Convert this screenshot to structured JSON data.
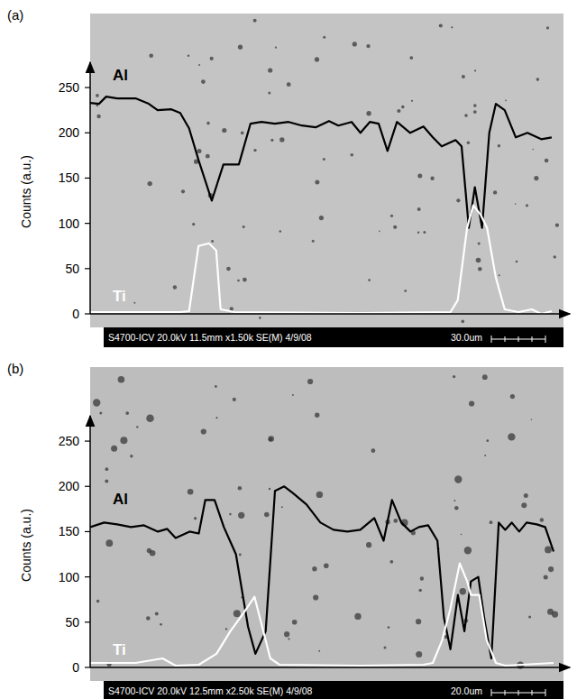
{
  "chart_data": [
    {
      "type": "line",
      "title": "(a)",
      "ylabel": "Counts (a.u.)",
      "annotations": [
        "S4700-ICV 20.0kV 11.5mm x1.50k SE(M) 4/9/08",
        "30.0um"
      ],
      "xlim": [
        0,
        84
      ],
      "ylim": [
        0,
        270
      ],
      "yticks": [
        0,
        50,
        100,
        150,
        200,
        250
      ],
      "tick_labels": "y",
      "grid": false,
      "series": [
        {
          "name": "Al",
          "color": "#000000",
          "x": [
            0,
            1.6,
            2.9,
            4.9,
            8.2,
            10.6,
            12.2,
            14.7,
            16.3,
            17.9,
            19.6,
            22.0,
            24.1,
            26.9,
            29.0,
            31.0,
            33.4,
            35.9,
            38.3,
            40.8,
            43.2,
            44.9,
            47.3,
            48.9,
            50.6,
            52.2,
            53.8,
            55.5,
            57.9,
            60.3,
            62.0,
            63.6,
            66.1,
            67.2,
            68.5,
            69.6,
            70.9,
            72.2,
            73.4,
            75.0,
            77.0,
            79.1,
            81.6,
            83.5
          ],
          "values": [
            233,
            232,
            240,
            238,
            238,
            232,
            225,
            226,
            222,
            205,
            170,
            125,
            165,
            165,
            210,
            212,
            210,
            212,
            208,
            206,
            213,
            208,
            212,
            200,
            212,
            210,
            180,
            212,
            200,
            207,
            195,
            185,
            192,
            185,
            95,
            140,
            95,
            200,
            232,
            225,
            195,
            200,
            193,
            195
          ]
        },
        {
          "name": "Ti",
          "color": "#ffffff",
          "x": [
            0,
            16.3,
            17.9,
            19.6,
            21.5,
            22.8,
            23.6,
            26.1,
            48.9,
            65.2,
            66.5,
            68.2,
            69.3,
            70.6,
            71.8,
            73.4,
            75.0,
            77.5,
            79.9,
            81.6,
            83.5
          ],
          "values": [
            2,
            2,
            3,
            75,
            78,
            70,
            5,
            2,
            1,
            2,
            15,
            95,
            120,
            110,
            95,
            40,
            5,
            2,
            5,
            0,
            3
          ]
        }
      ]
    },
    {
      "type": "line",
      "title": "(b)",
      "ylabel": "Counts (a.u.)",
      "annotations": [
        "S4700-ICV 20.0kV 12.5mm x2.50k SE(M) 4/9/08",
        "20.0um"
      ],
      "xlim": [
        0,
        50
      ],
      "ylim": [
        0,
        270
      ],
      "yticks": [
        0,
        50,
        100,
        150,
        200,
        250
      ],
      "tick_labels": "y",
      "grid": false,
      "series": [
        {
          "name": "Al",
          "color": "#000000",
          "x": [
            0,
            1.5,
            2.9,
            4.4,
            5.8,
            7.3,
            8.3,
            9.2,
            10.7,
            11.7,
            12.4,
            13.4,
            14.4,
            15.7,
            17.0,
            17.8,
            18.9,
            19.9,
            20.9,
            21.8,
            23.3,
            24.8,
            26.2,
            27.7,
            29.1,
            30.6,
            31.6,
            32.5,
            33.5,
            34.5,
            35.4,
            36.4,
            37.4,
            38.1,
            38.8,
            39.6,
            40.3,
            41.0,
            41.8,
            42.5,
            43.2,
            44.0,
            44.7,
            45.4,
            46.2,
            47.0,
            48.1,
            49.0,
            49.9
          ],
          "values": [
            155,
            160,
            158,
            155,
            157,
            150,
            153,
            143,
            150,
            148,
            185,
            185,
            155,
            125,
            45,
            15,
            40,
            195,
            200,
            193,
            180,
            160,
            152,
            150,
            152,
            165,
            140,
            185,
            160,
            150,
            155,
            157,
            140,
            55,
            20,
            80,
            40,
            95,
            100,
            50,
            10,
            160,
            152,
            160,
            150,
            160,
            158,
            155,
            128
          ]
        },
        {
          "name": "Ti",
          "color": "#ffffff",
          "x": [
            0,
            4.9,
            7.8,
            9.2,
            11.7,
            13.6,
            15.1,
            16.5,
            17.7,
            18.4,
            19.4,
            20.4,
            29.1,
            35.9,
            36.9,
            37.9,
            38.8,
            39.8,
            40.6,
            41.0,
            41.9,
            42.7,
            43.7,
            44.7,
            49.9
          ],
          "values": [
            5,
            5,
            10,
            2,
            3,
            15,
            40,
            60,
            78,
            50,
            10,
            3,
            2,
            3,
            5,
            30,
            65,
            115,
            95,
            80,
            80,
            30,
            5,
            2,
            5
          ]
        }
      ]
    }
  ]
}
